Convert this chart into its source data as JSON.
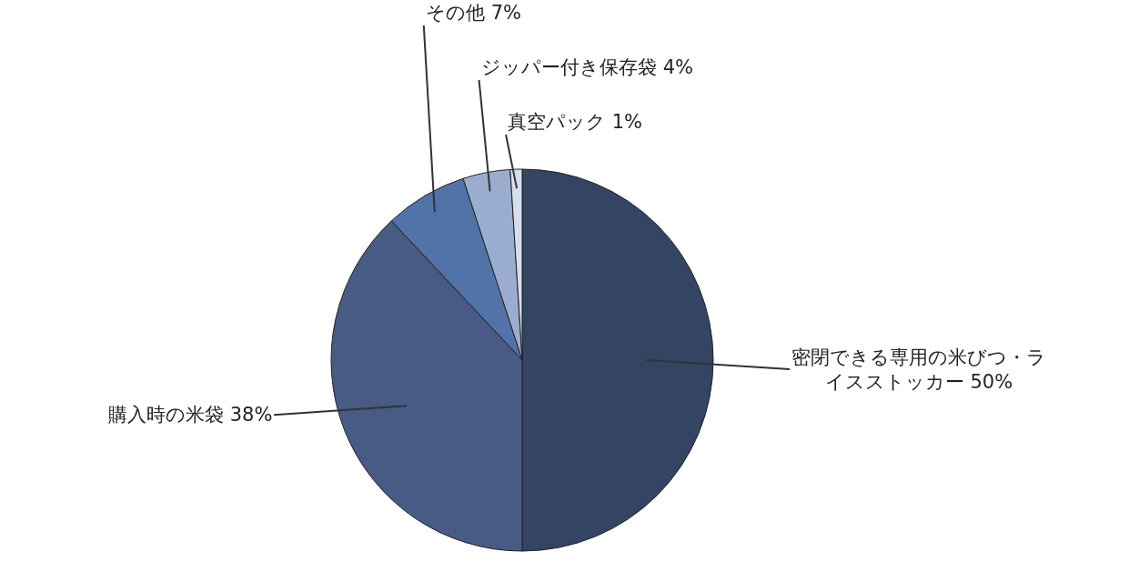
{
  "chart_data": {
    "type": "pie",
    "categories": [
      "密閉できる専用の米びつ・ライスストッカー",
      "購入時の米袋",
      "その他",
      "ジッパー付き保存袋",
      "真空パック"
    ],
    "values": [
      50,
      38,
      7,
      4,
      1
    ],
    "value_labels": [
      "50%",
      "38%",
      "7%",
      "4%",
      "1%"
    ],
    "colors": [
      "#344563",
      "#475b84",
      "#5173a8",
      "#9aadce",
      "#d5deee"
    ],
    "legend": false
  }
}
